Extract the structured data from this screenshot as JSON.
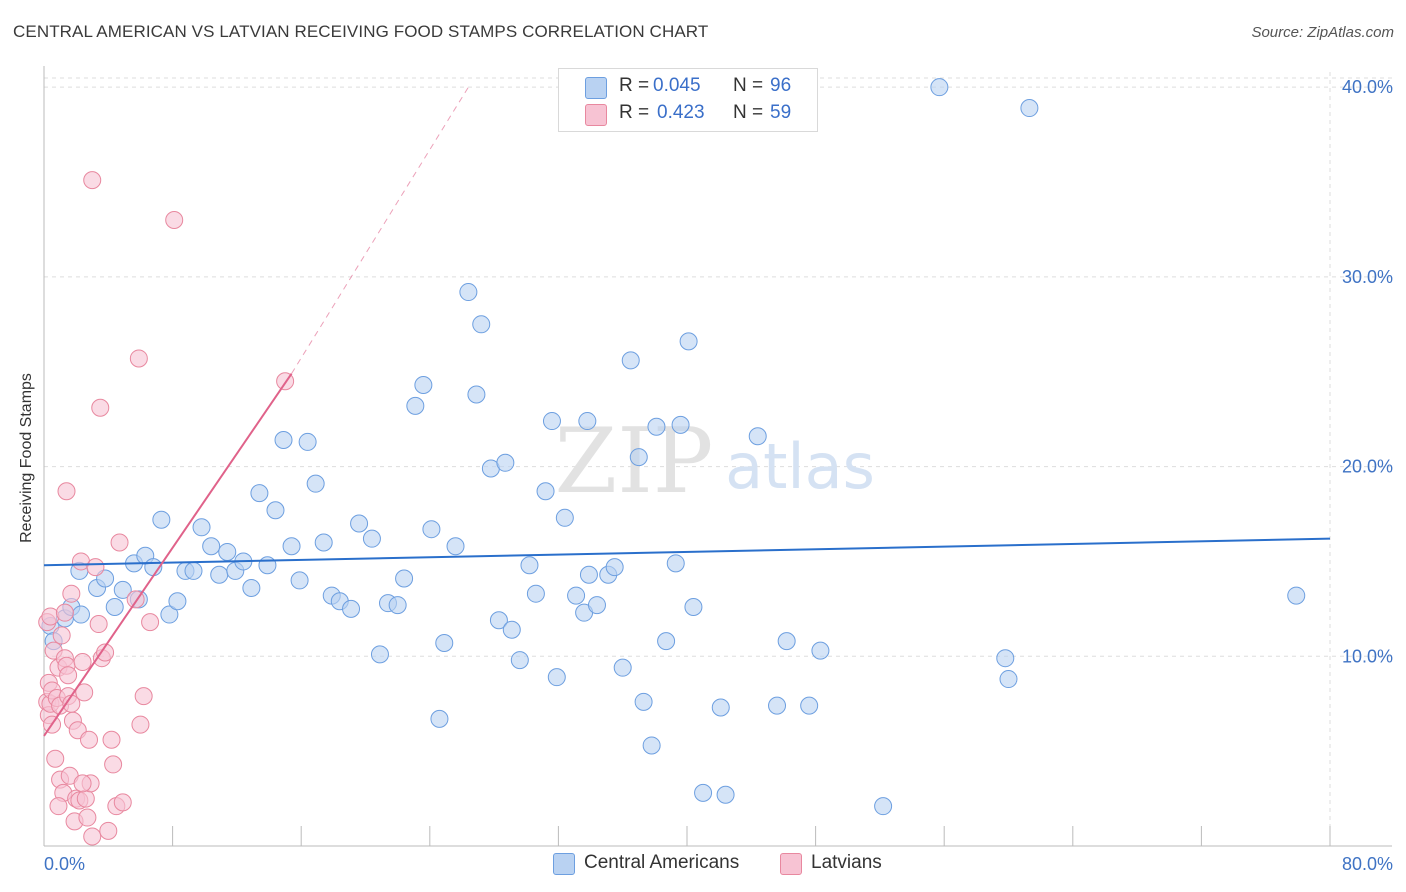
{
  "title": "CENTRAL AMERICAN VS LATVIAN RECEIVING FOOD STAMPS CORRELATION CHART",
  "source": "Source: ZipAtlas.com",
  "watermark": {
    "zip": "ZIP",
    "atlas": "atlas"
  },
  "legend": {
    "r_label": "R =",
    "n_label": "N =",
    "rows": [
      {
        "r": "0.045",
        "n": "96"
      },
      {
        "r": "0.423",
        "n": "59"
      }
    ]
  },
  "colors": {
    "blue_fill": "#b9d2f2",
    "blue_stroke": "#6d9fe0",
    "blue_line": "#2a6fcb",
    "pink_fill": "#f7c3d3",
    "pink_stroke": "#e8889f",
    "pink_line": "#e0628a",
    "tick_text": "#3f73c4",
    "grid": "#dddddd"
  },
  "chart_data": {
    "type": "scatter",
    "title": "CENTRAL AMERICAN VS LATVIAN RECEIVING FOOD STAMPS CORRELATION CHART",
    "xlabel": "",
    "ylabel": "Receiving Food Stamps",
    "xlim": [
      0,
      80
    ],
    "ylim": [
      0,
      40.8
    ],
    "x_tick_labels": [
      "0.0%",
      "80.0%"
    ],
    "y_ticks": [
      10,
      20,
      30,
      40
    ],
    "y_tick_labels": [
      "10.0%",
      "20.0%",
      "30.0%",
      "40.0%"
    ],
    "grid": true,
    "legend_position": "bottom",
    "series": [
      {
        "name": "Central Americans",
        "r": 0.045,
        "n": 96,
        "trend": {
          "x": [
            0,
            80
          ],
          "y": [
            14.8,
            16.2
          ],
          "dashed_extension": false
        },
        "points": [
          [
            0.4,
            11.6
          ],
          [
            0.6,
            10.8
          ],
          [
            1.3,
            12.0
          ],
          [
            1.7,
            12.6
          ],
          [
            2.3,
            12.2
          ],
          [
            2.2,
            14.5
          ],
          [
            3.3,
            13.6
          ],
          [
            3.8,
            14.1
          ],
          [
            4.4,
            12.6
          ],
          [
            4.9,
            13.5
          ],
          [
            5.6,
            14.9
          ],
          [
            5.9,
            13.0
          ],
          [
            6.3,
            15.3
          ],
          [
            6.8,
            14.7
          ],
          [
            7.3,
            17.2
          ],
          [
            7.8,
            12.2
          ],
          [
            8.3,
            12.9
          ],
          [
            8.8,
            14.5
          ],
          [
            9.3,
            14.5
          ],
          [
            9.8,
            16.8
          ],
          [
            10.4,
            15.8
          ],
          [
            10.9,
            14.3
          ],
          [
            11.4,
            15.5
          ],
          [
            11.9,
            14.5
          ],
          [
            12.4,
            15.0
          ],
          [
            12.9,
            13.6
          ],
          [
            13.4,
            18.6
          ],
          [
            13.9,
            14.8
          ],
          [
            14.4,
            17.7
          ],
          [
            14.9,
            21.4
          ],
          [
            15.4,
            15.8
          ],
          [
            15.9,
            14.0
          ],
          [
            16.4,
            21.3
          ],
          [
            16.9,
            19.1
          ],
          [
            17.4,
            16.0
          ],
          [
            17.9,
            13.2
          ],
          [
            18.4,
            12.9
          ],
          [
            19.1,
            12.5
          ],
          [
            19.6,
            17.0
          ],
          [
            20.4,
            16.2
          ],
          [
            20.9,
            10.1
          ],
          [
            21.4,
            12.8
          ],
          [
            22.0,
            12.7
          ],
          [
            22.4,
            14.1
          ],
          [
            23.1,
            23.2
          ],
          [
            23.6,
            24.3
          ],
          [
            24.1,
            16.7
          ],
          [
            24.6,
            6.7
          ],
          [
            24.9,
            10.7
          ],
          [
            25.6,
            15.8
          ],
          [
            26.4,
            29.2
          ],
          [
            26.9,
            23.8
          ],
          [
            27.2,
            27.5
          ],
          [
            27.8,
            19.9
          ],
          [
            28.3,
            11.9
          ],
          [
            28.7,
            20.2
          ],
          [
            29.1,
            11.4
          ],
          [
            29.6,
            9.8
          ],
          [
            30.2,
            14.8
          ],
          [
            30.6,
            13.3
          ],
          [
            31.2,
            18.7
          ],
          [
            31.6,
            22.4
          ],
          [
            31.9,
            8.9
          ],
          [
            32.4,
            17.3
          ],
          [
            33.1,
            13.2
          ],
          [
            33.6,
            12.3
          ],
          [
            33.8,
            22.4
          ],
          [
            33.9,
            14.3
          ],
          [
            34.4,
            12.7
          ],
          [
            35.1,
            14.3
          ],
          [
            35.5,
            14.7
          ],
          [
            36.0,
            9.4
          ],
          [
            36.5,
            25.6
          ],
          [
            37.0,
            20.5
          ],
          [
            37.3,
            7.6
          ],
          [
            37.8,
            5.3
          ],
          [
            38.1,
            22.1
          ],
          [
            38.7,
            10.8
          ],
          [
            39.3,
            14.9
          ],
          [
            39.6,
            22.2
          ],
          [
            40.1,
            26.6
          ],
          [
            40.4,
            12.6
          ],
          [
            41.0,
            2.8
          ],
          [
            42.1,
            7.3
          ],
          [
            42.4,
            2.7
          ],
          [
            44.4,
            21.6
          ],
          [
            45.6,
            7.4
          ],
          [
            46.2,
            10.8
          ],
          [
            47.6,
            7.4
          ],
          [
            48.3,
            10.3
          ],
          [
            52.2,
            2.1
          ],
          [
            55.7,
            40.0
          ],
          [
            59.8,
            9.9
          ],
          [
            60.0,
            8.8
          ],
          [
            61.3,
            38.9
          ],
          [
            77.9,
            13.2
          ]
        ]
      },
      {
        "name": "Latvians",
        "r": 0.423,
        "n": 59,
        "trend": {
          "x": [
            0,
            15.4
          ],
          "y": [
            5.8,
            24.9
          ],
          "dashed_extension_to": [
            26.4,
            40.0
          ]
        },
        "points": [
          [
            0.2,
            11.8
          ],
          [
            0.2,
            7.6
          ],
          [
            0.3,
            6.9
          ],
          [
            0.3,
            8.6
          ],
          [
            0.4,
            7.5
          ],
          [
            0.4,
            12.1
          ],
          [
            0.5,
            8.2
          ],
          [
            0.5,
            6.4
          ],
          [
            0.6,
            10.3
          ],
          [
            0.7,
            4.6
          ],
          [
            0.8,
            7.8
          ],
          [
            0.9,
            9.4
          ],
          [
            1.0,
            3.5
          ],
          [
            1.0,
            7.4
          ],
          [
            1.1,
            11.1
          ],
          [
            1.2,
            2.8
          ],
          [
            1.3,
            9.9
          ],
          [
            1.3,
            12.3
          ],
          [
            1.4,
            9.5
          ],
          [
            1.5,
            7.9
          ],
          [
            1.5,
            9.0
          ],
          [
            1.6,
            3.7
          ],
          [
            1.7,
            7.5
          ],
          [
            1.7,
            13.3
          ],
          [
            1.8,
            6.6
          ],
          [
            1.9,
            1.3
          ],
          [
            2.0,
            2.5
          ],
          [
            2.1,
            6.1
          ],
          [
            2.2,
            2.4
          ],
          [
            2.3,
            15.0
          ],
          [
            2.4,
            9.7
          ],
          [
            2.5,
            8.1
          ],
          [
            2.6,
            2.5
          ],
          [
            2.7,
            1.5
          ],
          [
            2.8,
            5.6
          ],
          [
            2.9,
            3.3
          ],
          [
            3.0,
            35.1
          ],
          [
            3.0,
            0.5
          ],
          [
            3.2,
            14.7
          ],
          [
            3.4,
            11.7
          ],
          [
            3.5,
            23.1
          ],
          [
            3.6,
            9.9
          ],
          [
            3.8,
            10.2
          ],
          [
            4.0,
            0.8
          ],
          [
            4.2,
            5.6
          ],
          [
            4.3,
            4.3
          ],
          [
            4.5,
            2.1
          ],
          [
            4.9,
            2.3
          ],
          [
            4.7,
            16.0
          ],
          [
            5.7,
            13.0
          ],
          [
            5.9,
            25.7
          ],
          [
            6.0,
            6.4
          ],
          [
            6.2,
            7.9
          ],
          [
            6.6,
            11.8
          ],
          [
            8.1,
            33.0
          ],
          [
            15.0,
            24.5
          ],
          [
            0.9,
            2.1
          ],
          [
            1.4,
            18.7
          ],
          [
            2.4,
            3.3
          ]
        ]
      }
    ]
  },
  "bottom_legend": [
    "Central Americans",
    "Latvians"
  ]
}
